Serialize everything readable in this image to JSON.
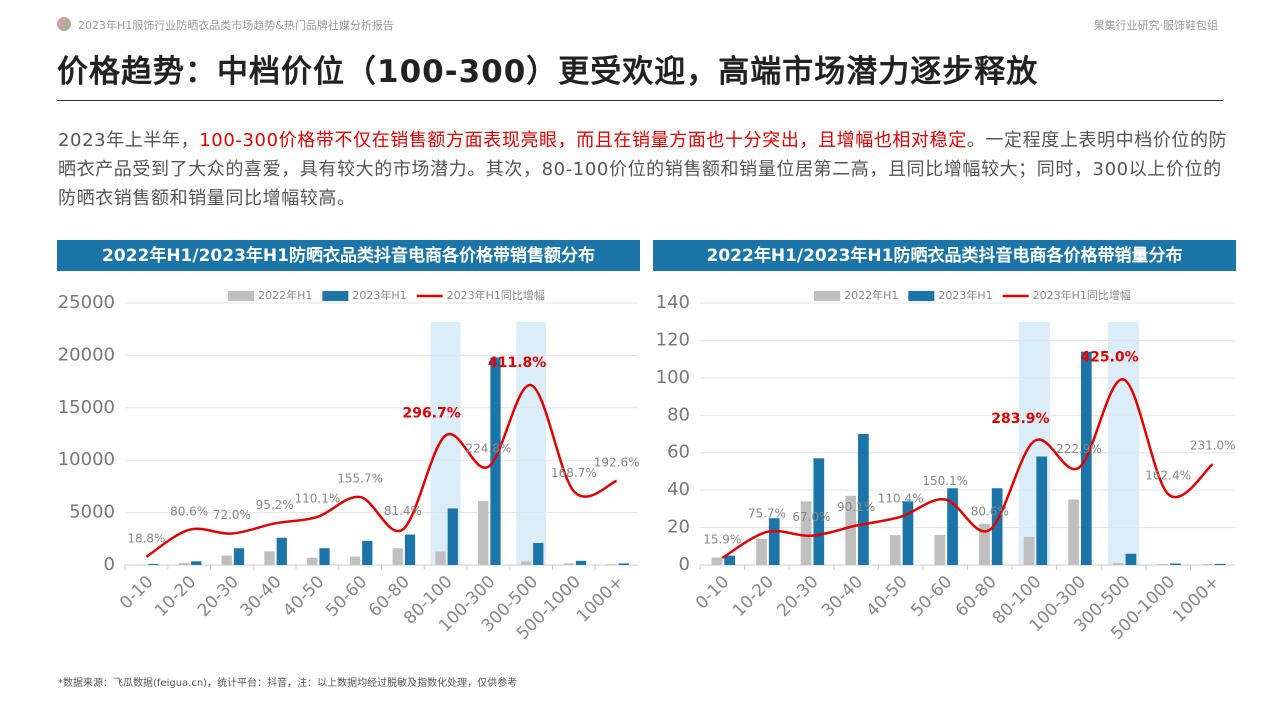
{
  "header": {
    "report": "2023年H1服饰行业防晒衣品类市场趋势&热门品牌社媒分析报告",
    "source": "果集行业研究·服饰鞋包组"
  },
  "title": "价格趋势：中档价位（100-300）更受欢迎，高端市场潜力逐步释放",
  "paragraph": {
    "lead": "2023年上半年，",
    "highlight": "100-300价格带不仅在销售额方面表现亮眼，而且在销量方面也十分突出，且增幅也相对稳定",
    "rest": "。一定程度上表明中档价位的防晒衣产品受到了大众的喜爱，具有较大的市场潜力。其次，80-100价位的销售额和销量位居第二高，且同比增幅较大；同时，300以上价位的防晒衣销售额和销量同比增幅较高。"
  },
  "footnote": "*数据来源：飞瓜数据(feigua.cn)，统计平台：抖音，注：以上数据均经过脱敏及指数化处理，仅供参考",
  "chart_data": [
    {
      "type": "bar",
      "title": "2022年H1/2023年H1防晒衣品类抖音电商各价格带销售额分布",
      "categories": [
        "0-10",
        "10-20",
        "20-30",
        "30-40",
        "40-50",
        "50-60",
        "60-80",
        "80-100",
        "100-300",
        "300-500",
        "500-1000",
        "1000+"
      ],
      "series": [
        {
          "name": "2022年H1",
          "color": "#bfbfbf",
          "values": [
            50,
            200,
            900,
            1300,
            700,
            800,
            1600,
            1300,
            6100,
            350,
            150,
            80
          ]
        },
        {
          "name": "2023年H1",
          "color": "#1b75a9",
          "values": [
            100,
            350,
            1600,
            2600,
            1600,
            2300,
            2900,
            5400,
            19800,
            2100,
            400,
            150
          ]
        },
        {
          "name": "2023年H1同比增幅",
          "color": "#e00000",
          "type": "line",
          "axis": "y2",
          "values": [
            18.8,
            80.6,
            72.0,
            95.2,
            110.1,
            155.7,
            81.4,
            296.7,
            224.8,
            411.8,
            168.7,
            192.6
          ],
          "value_labels": [
            "18.8%",
            "80.6%",
            "72.0%",
            "95.2%",
            "110.1%",
            "155.7%",
            "81.4%",
            "296.7%",
            "224.8%",
            "411.8%",
            "168.7%",
            "192.6%"
          ]
        }
      ],
      "ylim": [
        0,
        25000
      ],
      "yticks": [
        0,
        5000,
        10000,
        15000,
        20000,
        25000
      ],
      "y2lim": [
        0,
        600
      ],
      "grid": true,
      "highlight": [
        7,
        9
      ]
    },
    {
      "type": "bar",
      "title": "2022年H1/2023年H1防晒衣品类抖音电商各价格带销量分布",
      "categories": [
        "0-10",
        "10-20",
        "20-30",
        "30-40",
        "40-50",
        "50-60",
        "60-80",
        "80-100",
        "100-300",
        "300-500",
        "500-1000",
        "1000+"
      ],
      "series": [
        {
          "name": "2022年H1",
          "color": "#bfbfbf",
          "values": [
            4,
            14,
            34,
            37,
            16,
            16,
            22,
            15,
            35,
            1,
            0.5,
            0.5
          ]
        },
        {
          "name": "2023年H1",
          "color": "#1b75a9",
          "values": [
            5,
            25,
            57,
            70,
            34,
            41,
            41,
            58,
            114,
            6,
            0.8,
            0.6
          ]
        },
        {
          "name": "2023年H1同比增幅",
          "color": "#e00000",
          "type": "line",
          "axis": "y2",
          "values": [
            15.9,
            75.7,
            67.0,
            90.1,
            110.4,
            150.1,
            80.6,
            283.9,
            222.9,
            425.0,
            162.4,
            231.0
          ],
          "value_labels": [
            "15.9%",
            "75.7%",
            "67.0%",
            "90.1%",
            "110.4%",
            "150.1%",
            "80.6%",
            "283.9%",
            "222.9%",
            "425.0%",
            "162.4%",
            "231.0%"
          ]
        }
      ],
      "ylim": [
        0,
        140
      ],
      "yticks": [
        0,
        20,
        40,
        60,
        80,
        100,
        120,
        140
      ],
      "y2lim": [
        0,
        600
      ],
      "grid": true,
      "highlight": [
        7,
        9
      ]
    }
  ]
}
